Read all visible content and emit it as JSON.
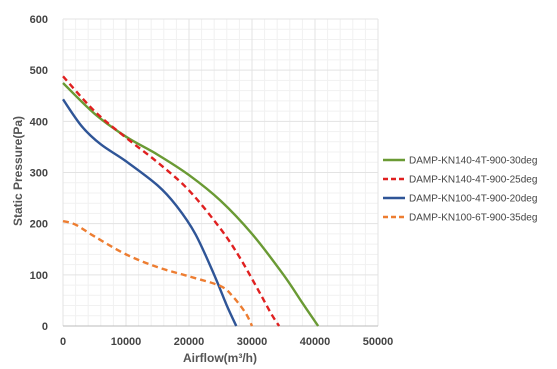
{
  "chart_data": {
    "type": "line",
    "title": "",
    "xlabel": "Airflow(m³/h)",
    "ylabel": "Static Pressure(Pa)",
    "xlim": [
      0,
      50000
    ],
    "ylim": [
      0,
      600
    ],
    "xticks": [
      0,
      10000,
      20000,
      30000,
      40000,
      50000
    ],
    "yticks": [
      0,
      100,
      200,
      300,
      400,
      500,
      600
    ],
    "grid": true,
    "legend": "right",
    "series": [
      {
        "name": "DAMP-KN140-4T-900-30deg",
        "color": "#6a9a34",
        "dash": "solid",
        "x": [
          0,
          5000,
          10000,
          15000,
          20000,
          25000,
          30000,
          35000,
          38000,
          40500
        ],
        "y": [
          475,
          415,
          370,
          335,
          295,
          245,
          180,
          100,
          45,
          0
        ]
      },
      {
        "name": "DAMP-KN140-4T-900-25deg",
        "color": "#e02020",
        "dash": "dashed",
        "x": [
          0,
          5000,
          10000,
          15000,
          20000,
          25000,
          28000,
          31000,
          33000,
          34300
        ],
        "y": [
          488,
          420,
          368,
          320,
          265,
          190,
          135,
          70,
          25,
          0
        ]
      },
      {
        "name": "DAMP-KN100-4T-900-20deg",
        "color": "#2f5597",
        "dash": "solid",
        "x": [
          0,
          3000,
          6000,
          10000,
          15000,
          18000,
          21000,
          24000,
          26000,
          27500
        ],
        "y": [
          443,
          390,
          355,
          322,
          275,
          235,
          180,
          100,
          40,
          0
        ]
      },
      {
        "name": "DAMP-KN100-6T-900-35deg",
        "color": "#ed7d31",
        "dash": "dashed",
        "x": [
          0,
          2000,
          5000,
          10000,
          15000,
          20000,
          25000,
          27000,
          29000,
          30000
        ],
        "y": [
          205,
          198,
          175,
          140,
          115,
          97,
          78,
          57,
          25,
          0
        ]
      }
    ]
  }
}
